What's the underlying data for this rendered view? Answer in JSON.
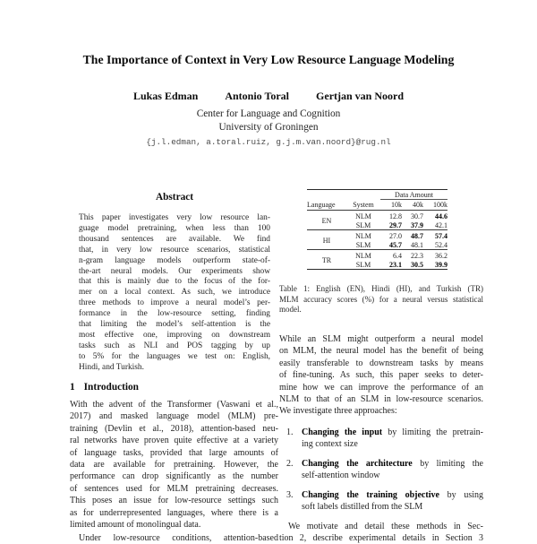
{
  "title": "The Importance of Context in Very Low Resource Language Modeling",
  "authors": [
    "Lukas Edman",
    "Antonio Toral",
    "Gertjan van Noord"
  ],
  "affiliation": {
    "institute": "Center for Language and Cognition",
    "university": "University of Groningen",
    "email": "{j.l.edman, a.toral.ruiz, g.j.m.van.noord}@rug.nl"
  },
  "abstract": {
    "heading": "Abstract",
    "lines": [
      "This paper investigates very low resource lan-",
      "guage model pretraining, when less than 100",
      "thousand sentences are available. We find",
      "that, in very low resource scenarios, statistical",
      "n-gram language models outperform state-of-",
      "the-art neural models. Our experiments show",
      "that this is mainly due to the focus of the for-",
      "mer on a local context. As such, we introduce",
      "three methods to improve a neural model’s per-",
      "formance in the low-resource setting, finding",
      "that limiting the model’s self-attention is the",
      "most effective one, improving on downstream",
      "tasks such as NLI and POS tagging by up",
      "to 5% for the languages we test on: English,",
      "Hindi, and Turkish."
    ]
  },
  "introduction": {
    "number": "1",
    "heading": "Introduction",
    "para1_lines": [
      "With the advent of the Transformer (Vaswani et al.,",
      "2017) and masked language model (MLM) pre-",
      "training (Devlin et al., 2018), attention-based neu-",
      "ral networks have proven quite effective at a variety",
      "of language tasks, provided that large amounts of",
      "data are available for pretraining. However, the",
      "performance can drop significantly as the number",
      "of sentences used for MLM pretraining decreases.",
      "This poses an issue for low-resource settings such",
      "as for underrepresented languages, where there is a",
      "limited amount of monolingual data."
    ],
    "para2_first_line_clipped": "Under low-resource conditions, attention-based"
  },
  "table1": {
    "group_header": "Data Amount",
    "columns": [
      "Language",
      "System",
      "10k",
      "40k",
      "100k"
    ],
    "groups": [
      {
        "language": "EN",
        "rows": [
          {
            "system": "NLM",
            "values": [
              "12.8",
              "30.7",
              "44.6"
            ]
          },
          {
            "system": "SLM",
            "values": [
              "29.7",
              "37.9",
              "42.1"
            ]
          }
        ]
      },
      {
        "language": "HI",
        "rows": [
          {
            "system": "NLM",
            "values": [
              "27.0",
              "48.7",
              "57.4"
            ]
          },
          {
            "system": "SLM",
            "values": [
              "45.7",
              "48.1",
              "52.4"
            ]
          }
        ]
      },
      {
        "language": "TR",
        "rows": [
          {
            "system": "NLM",
            "values": [
              "6.4",
              "22.3",
              "36.2"
            ]
          },
          {
            "system": "SLM",
            "values": [
              "23.1",
              "30.5",
              "39.9"
            ]
          }
        ]
      }
    ],
    "caption_lines": [
      "Table 1: English (EN), Hindi (HI), and Turkish (TR)",
      "MLM accuracy scores (%) for a neural versus statistical",
      "model."
    ]
  },
  "right_column": {
    "para1_lines": [
      "While an SLM might outperform a neural model",
      "on MLM, the neural model has the benefit of being",
      "easily transferable to downstream tasks by means",
      "of fine-tuning. As such, this paper seeks to deter-",
      "mine how we can improve the performance of an",
      "NLM to that of an SLM in low-resource scenarios.",
      "We investigate three approaches:"
    ],
    "list": [
      {
        "num": "1.",
        "bold": "Changing the input",
        "rest_first": " by limiting the pretrain-",
        "rest_second": "ing context size"
      },
      {
        "num": "2.",
        "bold": "Changing the architecture",
        "rest_first": " by limiting the",
        "rest_second": "self-attention window"
      },
      {
        "num": "3.",
        "bold": "Changing the training objective",
        "rest_first": " by using",
        "rest_second": "soft labels distilled from the SLM"
      }
    ],
    "para2_line1": "We motivate and detail these methods in Sec-",
    "para2_line2_clipped": "tion 2, describe experimental details in Section 3"
  }
}
